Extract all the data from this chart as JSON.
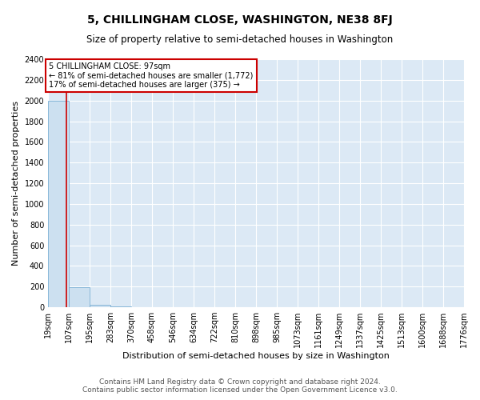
{
  "title": "5, CHILLINGHAM CLOSE, WASHINGTON, NE38 8FJ",
  "subtitle": "Size of property relative to semi-detached houses in Washington",
  "xlabel": "Distribution of semi-detached houses by size in Washington",
  "ylabel": "Number of semi-detached properties",
  "bin_edges": [
    19,
    107,
    195,
    283,
    370,
    458,
    546,
    634,
    722,
    810,
    898,
    985,
    1073,
    1161,
    1249,
    1337,
    1425,
    1513,
    1600,
    1688,
    1776
  ],
  "bar_heights": [
    2000,
    195,
    25,
    5,
    2,
    2,
    1,
    1,
    1,
    1,
    1,
    1,
    0,
    0,
    0,
    0,
    0,
    0,
    0,
    0
  ],
  "bar_color": "#cce0f0",
  "bar_edge_color": "#7aafd4",
  "property_size": 97,
  "property_line_color": "#cc0000",
  "annotation_text": "5 CHILLINGHAM CLOSE: 97sqm\n← 81% of semi-detached houses are smaller (1,772)\n17% of semi-detached houses are larger (375) →",
  "annotation_box_color": "#ffffff",
  "annotation_box_edge_color": "#cc0000",
  "ylim": [
    0,
    2400
  ],
  "yticks": [
    0,
    200,
    400,
    600,
    800,
    1000,
    1200,
    1400,
    1600,
    1800,
    2000,
    2200,
    2400
  ],
  "tick_labels": [
    "19sqm",
    "107sqm",
    "195sqm",
    "283sqm",
    "370sqm",
    "458sqm",
    "546sqm",
    "634sqm",
    "722sqm",
    "810sqm",
    "898sqm",
    "985sqm",
    "1073sqm",
    "1161sqm",
    "1249sqm",
    "1337sqm",
    "1425sqm",
    "1513sqm",
    "1600sqm",
    "1688sqm",
    "1776sqm"
  ],
  "footer_text": "Contains HM Land Registry data © Crown copyright and database right 2024.\nContains public sector information licensed under the Open Government Licence v3.0.",
  "fig_bg_color": "#ffffff",
  "plot_bg_color": "#dce9f5",
  "grid_color": "#ffffff",
  "title_fontsize": 10,
  "subtitle_fontsize": 8.5,
  "axis_label_fontsize": 8,
  "tick_fontsize": 7,
  "footer_fontsize": 6.5,
  "figsize": [
    6.0,
    5.0
  ],
  "dpi": 100
}
